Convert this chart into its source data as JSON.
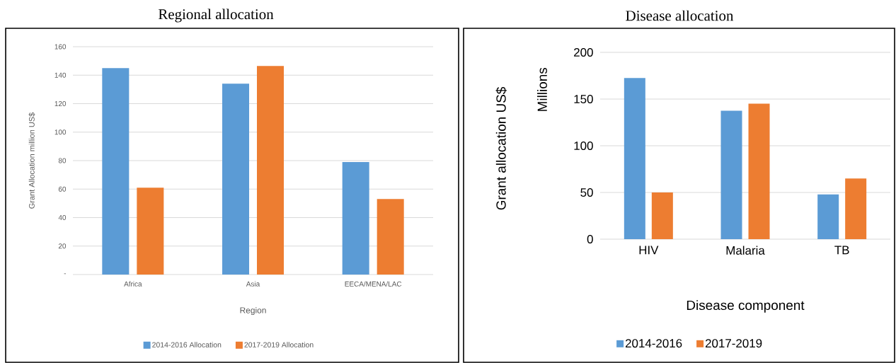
{
  "chart_data": [
    {
      "type": "bar",
      "title": "Regional allocation",
      "xlabel": "Region",
      "ylabel": "Grant Allocation million US$",
      "categories": [
        "Africa",
        "Asia",
        "EECA/MENA/LAC"
      ],
      "series": [
        {
          "name": "2014-2016 Allocation",
          "color": "#5b9bd5",
          "values": [
            145,
            134,
            79
          ]
        },
        {
          "name": "2017-2019 Allocation",
          "color": "#ed7d31",
          "values": [
            61,
            146.5,
            53
          ]
        }
      ],
      "ylim": [
        0,
        160
      ],
      "yticks": [
        {
          "value": 0,
          "label": "-"
        },
        20,
        40,
        60,
        80,
        100,
        120,
        140,
        160
      ],
      "grid": "y",
      "legend": "bottom"
    },
    {
      "type": "bar",
      "title": "Disease allocation",
      "xlabel": "Disease component",
      "ylabel": "Grant allocation US$",
      "annotations": [
        "Millions"
      ],
      "categories": [
        "HIV",
        "Malaria",
        "TB"
      ],
      "series": [
        {
          "name": "2014-2016",
          "color": "#5b9bd5",
          "values": [
            172.5,
            137.5,
            48
          ]
        },
        {
          "name": "2017-2019",
          "color": "#ed7d31",
          "values": [
            50,
            145,
            65
          ]
        }
      ],
      "ylim": [
        0,
        200
      ],
      "yticks": [
        0,
        50,
        100,
        150,
        200
      ],
      "grid": "y",
      "legend": "bottom"
    }
  ]
}
